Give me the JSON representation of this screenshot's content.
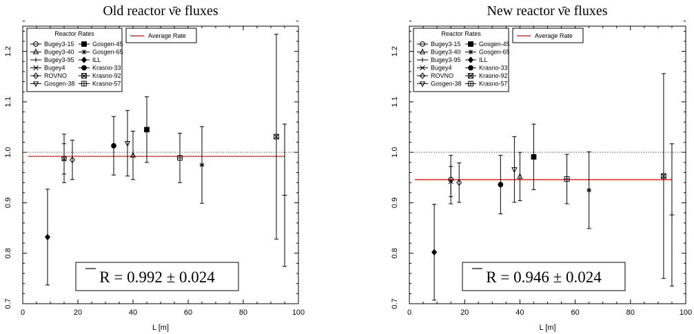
{
  "chart_data": [
    {
      "type": "scatter",
      "title": "Old reactor ν̄e fluxes",
      "xlabel": "L [m]",
      "ylabel": "",
      "xlim": [
        0,
        100
      ],
      "ylim": [
        0.7,
        1.25
      ],
      "x_ticks": [
        "0",
        "20",
        "40",
        "60",
        "80",
        "100"
      ],
      "y_ticks": [
        "0.7",
        "0.8",
        "0.9",
        "1.0",
        "1.1",
        "1.2"
      ],
      "reference_line": 1.0,
      "average_rate": 0.992,
      "result_text": "R = 0.992 ± 0.024",
      "legend_title": "Reactor Rates",
      "legend_average_label": "Average Rate",
      "average_color": "#e8302b",
      "series": [
        {
          "name": "Bugey3-15",
          "marker": "circle",
          "x": 15,
          "y": 0.988,
          "err_low": 0.94,
          "err_high": 1.036
        },
        {
          "name": "Bugey3-40",
          "marker": "triangle-up",
          "x": 40,
          "y": 0.994,
          "err_low": 0.946,
          "err_high": 1.042
        },
        {
          "name": "Bugey3-95",
          "marker": "plus",
          "x": 95,
          "y": 0.915,
          "err_low": 0.774,
          "err_high": 1.056
        },
        {
          "name": "Bugey4",
          "marker": "cross",
          "x": 15,
          "y": 0.987,
          "err_low": 0.957,
          "err_high": 1.017
        },
        {
          "name": "ROVNO",
          "marker": "diamond",
          "x": 18,
          "y": 0.985,
          "err_low": 0.946,
          "err_high": 1.024
        },
        {
          "name": "Gosgen-38",
          "marker": "triangle-down",
          "x": 38,
          "y": 1.018,
          "err_low": 0.953,
          "err_high": 1.083
        },
        {
          "name": "Gosgen-45",
          "marker": "square-line",
          "x": 45,
          "y": 1.045,
          "err_low": 0.98,
          "err_high": 1.11
        },
        {
          "name": "Gosgen-65",
          "marker": "asterisk",
          "x": 65,
          "y": 0.975,
          "err_low": 0.899,
          "err_high": 1.051
        },
        {
          "name": "ILL",
          "marker": "diamond-filled",
          "x": 9,
          "y": 0.832,
          "err_low": 0.737,
          "err_high": 0.927
        },
        {
          "name": "Krasno-33",
          "marker": "circle-filled",
          "x": 33,
          "y": 1.013,
          "err_low": 0.955,
          "err_high": 1.071
        },
        {
          "name": "Krasno-92",
          "marker": "square-x",
          "x": 92,
          "y": 1.031,
          "err_low": 0.828,
          "err_high": 1.234
        },
        {
          "name": "Krasno-57",
          "marker": "square-plus",
          "x": 57,
          "y": 0.989,
          "err_low": 0.94,
          "err_high": 1.038
        }
      ]
    },
    {
      "type": "scatter",
      "title": "New reactor ν̄e fluxes",
      "xlabel": "L [m]",
      "ylabel": "",
      "xlim": [
        0,
        100
      ],
      "ylim": [
        0.7,
        1.25
      ],
      "x_ticks": [
        "0",
        "20",
        "40",
        "60",
        "80",
        "100"
      ],
      "y_ticks": [
        "0.7",
        "0.8",
        "0.9",
        "1.0",
        "1.1",
        "1.2"
      ],
      "reference_line": 1.0,
      "average_rate": 0.946,
      "result_text": "R = 0.946 ± 0.024",
      "legend_title": "Reactor Rates",
      "legend_average_label": "Average Rate",
      "average_color": "#e8302b",
      "series": [
        {
          "name": "Bugey3-15",
          "marker": "circle",
          "x": 15,
          "y": 0.946,
          "err_low": 0.898,
          "err_high": 0.994
        },
        {
          "name": "Bugey3-40",
          "marker": "triangle-up",
          "x": 40,
          "y": 0.952,
          "err_low": 0.904,
          "err_high": 1.0
        },
        {
          "name": "Bugey3-95",
          "marker": "plus",
          "x": 95,
          "y": 0.876,
          "err_low": 0.735,
          "err_high": 1.017
        },
        {
          "name": "Bugey4",
          "marker": "cross",
          "x": 15,
          "y": 0.942,
          "err_low": 0.912,
          "err_high": 0.972
        },
        {
          "name": "ROVNO",
          "marker": "diamond",
          "x": 18,
          "y": 0.94,
          "err_low": 0.901,
          "err_high": 0.979
        },
        {
          "name": "Gosgen-38",
          "marker": "triangle-down",
          "x": 38,
          "y": 0.966,
          "err_low": 0.901,
          "err_high": 1.031
        },
        {
          "name": "Gosgen-45",
          "marker": "square-line",
          "x": 45,
          "y": 0.991,
          "err_low": 0.926,
          "err_high": 1.056
        },
        {
          "name": "Gosgen-65",
          "marker": "asterisk",
          "x": 65,
          "y": 0.925,
          "err_low": 0.849,
          "err_high": 1.001
        },
        {
          "name": "ILL",
          "marker": "diamond-filled",
          "x": 9,
          "y": 0.802,
          "err_low": 0.707,
          "err_high": 0.897
        },
        {
          "name": "Krasno-33",
          "marker": "circle-filled",
          "x": 33,
          "y": 0.936,
          "err_low": 0.878,
          "err_high": 0.994
        },
        {
          "name": "Krasno-92",
          "marker": "square-x",
          "x": 92,
          "y": 0.953,
          "err_low": 0.75,
          "err_high": 1.156
        },
        {
          "name": "Krasno-57",
          "marker": "square-plus",
          "x": 57,
          "y": 0.947,
          "err_low": 0.898,
          "err_high": 0.996
        }
      ]
    }
  ]
}
